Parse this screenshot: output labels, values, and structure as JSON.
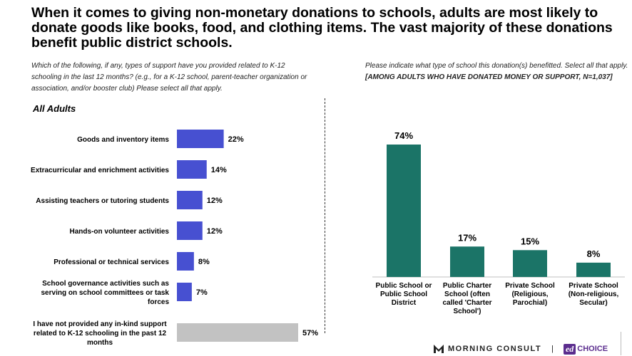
{
  "title": "When it comes to giving non-monetary donations to schools, adults are most likely to donate goods like books, food, and clothing items. The vast majority of these donations benefit public district schools.",
  "left_question": "Which of the following, if any, types of support have you provided related to K-12 schooling in the last 12 months? (e.g., for a K-12 school, parent-teacher organization or association, and/or booster club) Please select all that apply.",
  "right_question": "Please indicate what type of school this donation(s) benefitted. Select all that apply.",
  "right_question_note": "[AMONG ADULTS WHO HAVE DONATED MONEY OR SUPPORT, N=1,037]",
  "left_subhead": "All Adults",
  "footer": {
    "brand": "MORNING CONSULT",
    "separator": "|",
    "partner_badge": "ed",
    "partner_name": "CHOICE"
  },
  "colors": {
    "left_bar": "#4750d1",
    "left_bar_none": "#c2c2c2",
    "right_bar": "#1b7467",
    "brand_purple": "#5b2d8e"
  },
  "chart_data": [
    {
      "type": "bar",
      "orientation": "horizontal",
      "title": "All Adults",
      "categories": [
        "Goods and inventory items",
        "Extracurricular and enrichment activities",
        "Assisting teachers or tutoring students",
        "Hands-on volunteer activities",
        "Professional or technical services",
        "School governance activities such as serving on school committees or task forces",
        "I have not provided any in-kind support related to K-12 schooling in the past 12 months"
      ],
      "label_lines": [
        [
          "Goods and inventory items"
        ],
        [
          "Extracurricular and enrichment activities"
        ],
        [
          "Assisting teachers or tutoring students"
        ],
        [
          "Hands-on volunteer activities"
        ],
        [
          "Professional or technical services"
        ],
        [
          "School governance activities such as",
          "serving on school committees or task",
          "forces"
        ],
        [
          "I have not provided any in-kind support",
          "related to K-12 schooling in the past 12",
          "months"
        ]
      ],
      "values": [
        22,
        14,
        12,
        12,
        8,
        7,
        57
      ],
      "value_labels": [
        "22%",
        "14%",
        "12%",
        "12%",
        "8%",
        "7%",
        "57%"
      ],
      "unit": "%",
      "xlim": [
        0,
        100
      ],
      "grid": false,
      "legend": "none"
    },
    {
      "type": "bar",
      "orientation": "vertical",
      "categories": [
        "Public School or Public School District",
        "Public Charter School (often called 'Charter School')",
        "Private School (Religious, Parochial)",
        "Private School (Non-religious, Secular)"
      ],
      "label_lines": [
        [
          "Public School or",
          "Public School",
          "District"
        ],
        [
          "Public Charter",
          "School (often",
          "called 'Charter",
          "School')"
        ],
        [
          "Private School",
          "(Religious,",
          "Parochial)"
        ],
        [
          "Private School",
          "(Non-religious,",
          "Secular)"
        ]
      ],
      "values": [
        74,
        17,
        15,
        8
      ],
      "value_labels": [
        "74%",
        "17%",
        "15%",
        "8%"
      ],
      "unit": "%",
      "ylim": [
        0,
        100
      ],
      "grid": false,
      "legend": "none"
    }
  ]
}
